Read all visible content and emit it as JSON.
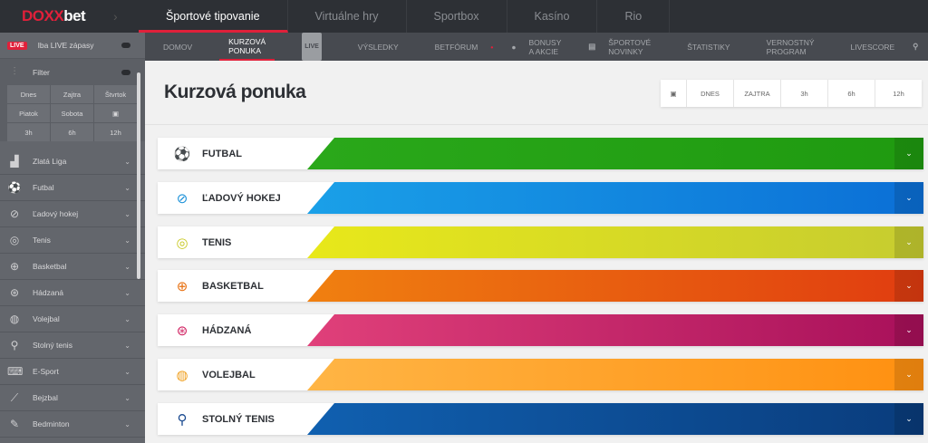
{
  "header": {
    "logo": "DOXXbet",
    "logo_prefix": "DOXX",
    "logo_suffix": "bet",
    "nav": [
      "Športové tipovanie",
      "Virtuálne hry",
      "Sportbox",
      "Kasíno",
      "Rio"
    ]
  },
  "subnav": {
    "items": [
      "DOMOV",
      "KURZOVÁ PONUKA",
      "LIVE",
      "VÝSLEDKY",
      "BETFÓRUM",
      "BONUSY A AKCIE",
      "ŠPORTOVÉ NOVINKY",
      "ŠTATISTIKY",
      "VERNOSTNÝ PROGRAM",
      "LIVESCORE"
    ],
    "search": "HĽADAŤ"
  },
  "sidebar": {
    "live_badge": "LIVE",
    "live_label": "Iba LIVE zápasy",
    "filter_label": "Filter",
    "filter_grid": [
      "Dnes",
      "Zajtra",
      "Štvrtok",
      "Piatok",
      "Sobota",
      "▣",
      "3h",
      "6h",
      "12h"
    ],
    "items": [
      {
        "label": "Zlatá Liga",
        "icon": "podium-icon"
      },
      {
        "label": "Futbal",
        "icon": "football-icon"
      },
      {
        "label": "Ľadový hokej",
        "icon": "hockey-icon"
      },
      {
        "label": "Tenis",
        "icon": "tennis-icon"
      },
      {
        "label": "Basketbal",
        "icon": "basketball-icon"
      },
      {
        "label": "Hádzaná",
        "icon": "handball-icon"
      },
      {
        "label": "Volejbal",
        "icon": "volleyball-icon"
      },
      {
        "label": "Stolný tenis",
        "icon": "table-tennis-icon"
      },
      {
        "label": "E-Sport",
        "icon": "gamepad-icon"
      },
      {
        "label": "Bejzbal",
        "icon": "baseball-icon"
      },
      {
        "label": "Bedminton",
        "icon": "badminton-icon"
      }
    ]
  },
  "main": {
    "title": "Kurzová ponuka",
    "time_filters": [
      "DNES",
      "ZAJTRA",
      "3h",
      "6h",
      "12h"
    ],
    "sports": [
      {
        "label": "FUTBAL",
        "color": "#2aa81a",
        "color2": "#1f9a10",
        "icon_color": "#2aa81a"
      },
      {
        "label": "ĽADOVÝ HOKEJ",
        "color": "#1aa0e8",
        "color2": "#0b6fd6",
        "icon_color": "#1a90d8"
      },
      {
        "label": "TENIS",
        "color": "#e8e81a",
        "color2": "#c6cc30",
        "icon_color": "#c8c820"
      },
      {
        "label": "BASKETBAL",
        "color": "#f08010",
        "color2": "#e03c10",
        "icon_color": "#e87010"
      },
      {
        "label": "HÁDZANÁ",
        "color": "#e0407a",
        "color2": "#a8105a",
        "icon_color": "#d02060"
      },
      {
        "label": "VOLEJBAL",
        "color": "#ffb545",
        "color2": "#ff9010",
        "icon_color": "#f0a020"
      },
      {
        "label": "STOLNÝ TENIS",
        "color": "#1060b0",
        "color2": "#0a3c7c",
        "icon_color": "#1a4a90"
      }
    ]
  }
}
